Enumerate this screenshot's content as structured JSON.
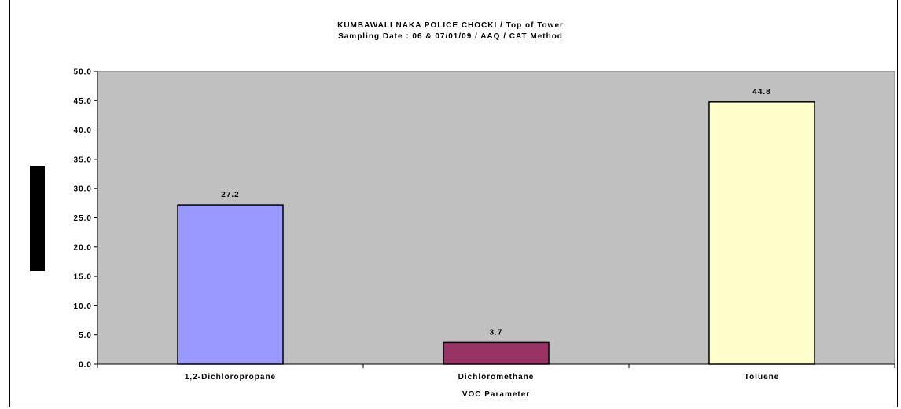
{
  "chart_data": {
    "type": "bar",
    "title": "KUMBAWALI NAKA POLICE CHOCKI / Top of Tower",
    "subtitle": "Sampling Date : 06 & 07/01/09 /   AAQ  / CAT Method",
    "xlabel": "VOC Parameter",
    "ylabel": "",
    "categories": [
      "1,2-Dichloropropane",
      "Dichloromethane",
      "Toluene"
    ],
    "values": [
      27.2,
      3.7,
      44.8
    ],
    "value_labels": [
      "27.2",
      "3.7",
      "44.8"
    ],
    "bar_colors": [
      "#9999ff",
      "#993366",
      "#ffffcc"
    ],
    "ylim": [
      0,
      50
    ],
    "yticks": [
      "0.0",
      "5.0",
      "10.0",
      "15.0",
      "20.0",
      "25.0",
      "30.0",
      "35.0",
      "40.0",
      "45.0",
      "50.0"
    ],
    "plot_background": "#c0c0c0",
    "grid": false,
    "legend": "none"
  }
}
